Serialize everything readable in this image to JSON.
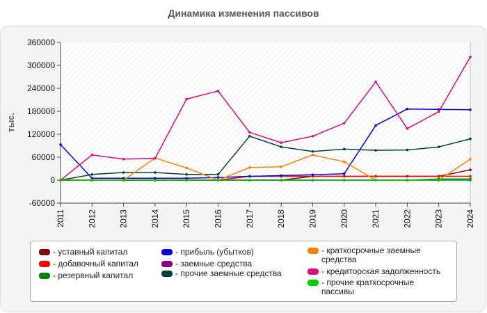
{
  "chart_data": {
    "type": "line",
    "title": "Динамика изменения пассивов",
    "ylabel": "тыс.",
    "xlabel": "",
    "ylim": [
      -60000,
      360000
    ],
    "yticks": [
      -60000,
      0,
      60000,
      120000,
      180000,
      240000,
      300000,
      360000
    ],
    "grid": false,
    "legend_position": "bottom",
    "x": [
      "2011",
      "2012",
      "2013",
      "2014",
      "2015",
      "2016",
      "2017",
      "2018",
      "2019",
      "2020",
      "2021",
      "2022",
      "2023",
      "2024"
    ],
    "series": [
      {
        "name": "уставный капитал",
        "color": "#800000",
        "values": [
          0,
          0,
          0,
          0,
          0,
          0,
          0,
          0,
          10000,
          10000,
          10000,
          10000,
          10000,
          27000
        ]
      },
      {
        "name": "добавочный капитал",
        "color": "#ff0000",
        "values": [
          0,
          0,
          0,
          0,
          0,
          0,
          10000,
          10000,
          10000,
          10000,
          10000,
          10000,
          10000,
          10000
        ]
      },
      {
        "name": "резервный капитал",
        "color": "#008000",
        "values": [
          0,
          0,
          0,
          0,
          0,
          0,
          0,
          0,
          0,
          0,
          0,
          0,
          3000,
          3000
        ]
      },
      {
        "name": "прибыль (убытков)",
        "color": "#0000dd",
        "values": [
          93000,
          5000,
          5000,
          5000,
          5000,
          7000,
          10000,
          12000,
          14000,
          17000,
          143000,
          186000,
          185000,
          184000
        ]
      },
      {
        "name": "заемные средства",
        "color": "#800080",
        "values": [
          0,
          0,
          0,
          0,
          0,
          0,
          0,
          0,
          0,
          0,
          0,
          0,
          0,
          0
        ]
      },
      {
        "name": "прочие заемные средства",
        "color": "#003f3f",
        "values": [
          0,
          15000,
          20000,
          20000,
          15000,
          15000,
          115000,
          87000,
          75000,
          81000,
          78000,
          79000,
          87000,
          108000
        ]
      },
      {
        "name": "краткосрочные заемные средства",
        "color": "#ff8000",
        "values": [
          0,
          0,
          0,
          58000,
          32000,
          0,
          33000,
          35000,
          66000,
          48000,
          0,
          0,
          0,
          55000
        ]
      },
      {
        "name": "кредиторская задолженность",
        "color": "#e0087a",
        "values": [
          0,
          66000,
          55000,
          57000,
          212000,
          233000,
          125000,
          98000,
          115000,
          149000,
          257000,
          135000,
          179000,
          322000
        ]
      },
      {
        "name": "прочие краткосрочные пассивы",
        "color": "#00cc00",
        "values": [
          0,
          0,
          0,
          0,
          0,
          0,
          0,
          0,
          0,
          0,
          0,
          0,
          0,
          0
        ]
      }
    ]
  },
  "legend": {
    "items": [
      "- уставный капитал",
      "- добавочный капитал",
      "- резервный капитал",
      "- прибыль (убытков)",
      "- заемные средства",
      "- прочие заемные средства",
      "- краткосрочные заемные средства",
      "- кредиторская задолженность",
      "- прочие краткосрочные пассивы"
    ]
  }
}
